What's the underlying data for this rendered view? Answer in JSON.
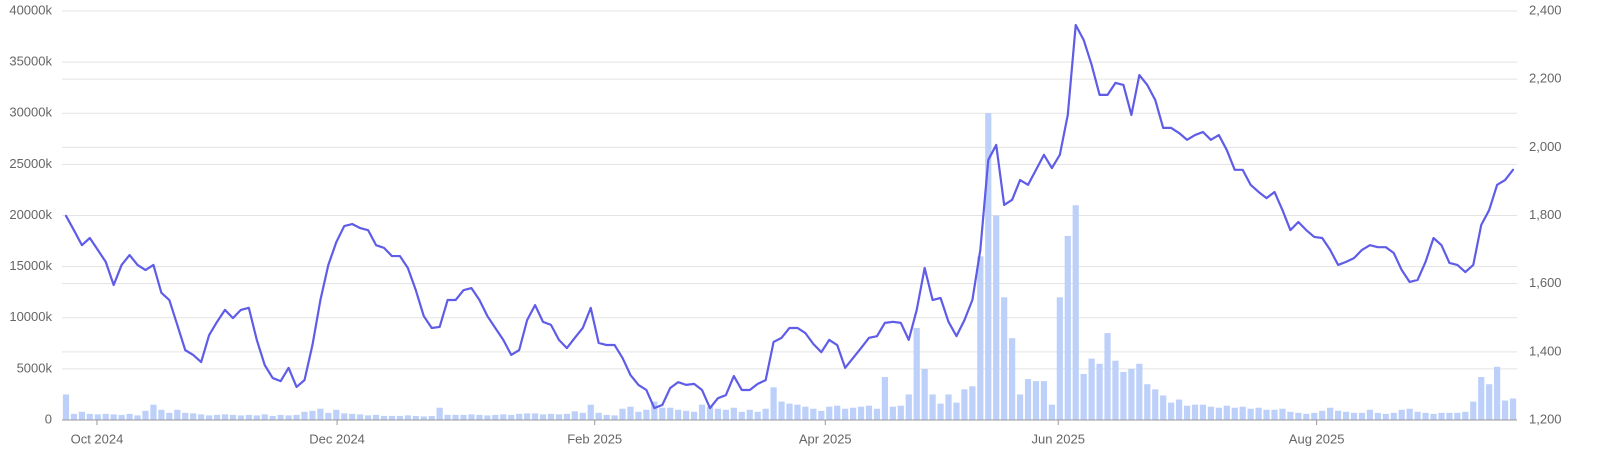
{
  "chart_data": {
    "type": "bar-line",
    "xlim": [
      0,
      183
    ],
    "xticks": [
      {
        "value": 4.4,
        "label": "Oct 2024"
      },
      {
        "value": 34.6,
        "label": "Dec 2024"
      },
      {
        "value": 67.0,
        "label": "Feb 2025"
      },
      {
        "value": 96.0,
        "label": "Apr 2025"
      },
      {
        "value": 125.3,
        "label": "Jun 2025"
      },
      {
        "value": 157.8,
        "label": "Aug 2025"
      }
    ],
    "ylim": [
      0,
      40000
    ],
    "yticks": [
      {
        "value": 0,
        "label": "0"
      },
      {
        "value": 5000,
        "label": "5000k"
      },
      {
        "value": 10000,
        "label": "10000k"
      },
      {
        "value": 15000,
        "label": "15000k"
      },
      {
        "value": 20000,
        "label": "20000k"
      },
      {
        "value": 25000,
        "label": "25000k"
      },
      {
        "value": 30000,
        "label": "30000k"
      },
      {
        "value": 35000,
        "label": "35000k"
      },
      {
        "value": 40000,
        "label": "40000k"
      }
    ],
    "y2lim": [
      1200,
      2400
    ],
    "y2ticks": [
      {
        "value": 1200,
        "label": "1,200"
      },
      {
        "value": 1400,
        "label": "1,400"
      },
      {
        "value": 1600,
        "label": "1,600"
      },
      {
        "value": 1800,
        "label": "1,800"
      },
      {
        "value": 2000,
        "label": "2,000"
      },
      {
        "value": 2200,
        "label": "2,200"
      },
      {
        "value": 2400,
        "label": "2,400"
      }
    ],
    "grid": true,
    "series": [
      {
        "type": "bar",
        "color": "#bcd0fa",
        "values": [
          2500,
          600,
          800,
          600,
          550,
          600,
          550,
          500,
          600,
          450,
          900,
          1500,
          1000,
          700,
          1000,
          700,
          650,
          550,
          450,
          500,
          550,
          500,
          450,
          500,
          450,
          550,
          400,
          500,
          450,
          500,
          800,
          900,
          1100,
          700,
          1000,
          650,
          600,
          550,
          450,
          500,
          400,
          400,
          400,
          450,
          400,
          350,
          400,
          1200,
          500,
          500,
          500,
          550,
          500,
          450,
          500,
          550,
          500,
          600,
          650,
          650,
          550,
          600,
          550,
          600,
          850,
          700,
          1500,
          700,
          500,
          450,
          1100,
          1300,
          800,
          1000,
          1800,
          1200,
          1200,
          1000,
          900,
          800,
          1500,
          1300,
          1100,
          1000,
          1200,
          800,
          1000,
          800,
          1100,
          3200,
          1800,
          1600,
          1500,
          1300,
          1100,
          900,
          1300,
          1400,
          1100,
          1200,
          1300,
          1400,
          1100,
          4200,
          1300,
          1400,
          2500,
          9000,
          5000,
          2500,
          1600,
          2500,
          1700,
          3000,
          3300,
          16000,
          30000,
          20000,
          12000,
          8000,
          2500,
          4000,
          3800,
          3800,
          1500,
          12000,
          18000,
          21000,
          4500,
          6000,
          5500,
          8500,
          5800,
          4700,
          5000,
          5500,
          3500,
          3000,
          2400,
          1700,
          2000,
          1400,
          1500,
          1500,
          1300,
          1200,
          1400,
          1200,
          1300,
          1100,
          1200,
          1000,
          1000,
          1100,
          800,
          700,
          600,
          700,
          900,
          1200,
          900,
          800,
          700,
          700,
          1000,
          700,
          600,
          700,
          1000,
          1100,
          800,
          700,
          600,
          700,
          700,
          700,
          800,
          1800,
          4200,
          3500,
          5200,
          1900,
          2100
        ]
      },
      {
        "type": "line",
        "axis": "y2",
        "color": "#5f5ce8",
        "values": [
          1799,
          1757,
          1713,
          1734,
          1699,
          1664,
          1596,
          1655,
          1684,
          1655,
          1640,
          1655,
          1573,
          1552,
          1479,
          1405,
          1391,
          1370,
          1449,
          1488,
          1523,
          1499,
          1523,
          1529,
          1435,
          1361,
          1323,
          1314,
          1353,
          1297,
          1317,
          1420,
          1552,
          1655,
          1722,
          1769,
          1775,
          1763,
          1757,
          1713,
          1705,
          1681,
          1681,
          1646,
          1581,
          1505,
          1470,
          1473,
          1552,
          1552,
          1581,
          1587,
          1552,
          1505,
          1470,
          1435,
          1391,
          1405,
          1493,
          1537,
          1488,
          1479,
          1435,
          1411,
          1441,
          1470,
          1529,
          1426,
          1420,
          1420,
          1382,
          1332,
          1303,
          1288,
          1235,
          1244,
          1294,
          1311,
          1303,
          1306,
          1288,
          1235,
          1264,
          1273,
          1329,
          1288,
          1288,
          1306,
          1317,
          1429,
          1441,
          1470,
          1470,
          1455,
          1423,
          1399,
          1435,
          1420,
          1353,
          1382,
          1411,
          1441,
          1446,
          1485,
          1488,
          1485,
          1435,
          1523,
          1646,
          1552,
          1558,
          1488,
          1446,
          1493,
          1552,
          1699,
          1963,
          2007,
          1831,
          1846,
          1904,
          1890,
          1934,
          1978,
          1939,
          1978,
          2095,
          2359,
          2315,
          2242,
          2154,
          2154,
          2189,
          2183,
          2095,
          2212,
          2183,
          2139,
          2057,
          2057,
          2042,
          2022,
          2036,
          2045,
          2022,
          2036,
          1992,
          1934,
          1934,
          1890,
          1869,
          1851,
          1869,
          1816,
          1757,
          1781,
          1757,
          1737,
          1734,
          1699,
          1655,
          1664,
          1675,
          1699,
          1713,
          1707,
          1707,
          1690,
          1640,
          1605,
          1611,
          1664,
          1734,
          1713,
          1661,
          1655,
          1634,
          1655,
          1772,
          1816,
          1890,
          1904,
          1934
        ]
      }
    ]
  }
}
